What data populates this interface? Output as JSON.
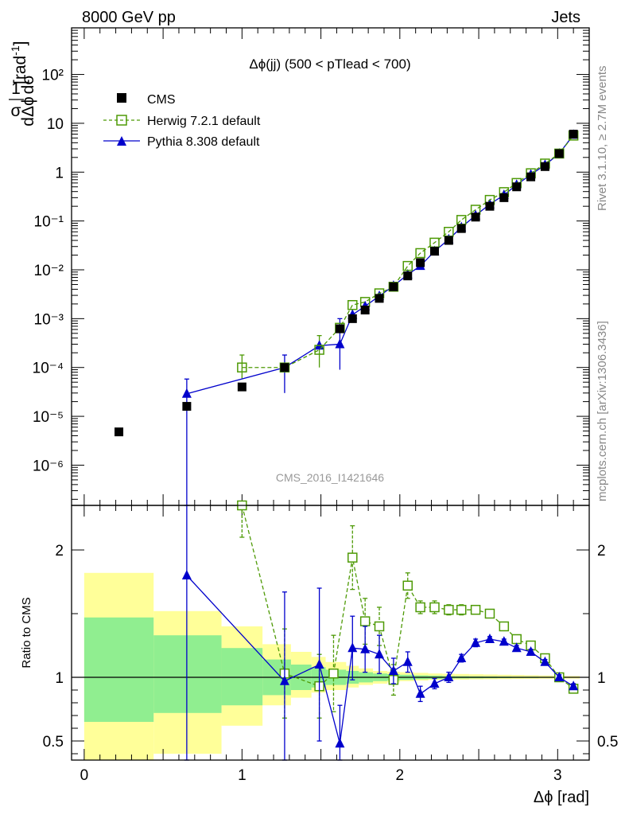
{
  "header": {
    "energy": "8000 GeV pp",
    "process": "Jets",
    "side_label_1": "Rivet 3.1.10, ≥ 2.7M events",
    "side_label_2": "mcplots.cern.ch [arXiv:1306.3436]",
    "watermark": "CMS_2016_I1421646"
  },
  "chart_data": [
    {
      "type": "scatter",
      "title": "Δϕ(jj) (500 < pTlead <  700)",
      "ylabel": "1/σ dσ/dΔϕ [rad⁻¹]",
      "ylabel_parts": {
        "num": "1",
        "den": "σ",
        "num2": "dσ",
        "den2": "dΔϕ",
        "unit": "[rad",
        "unit_exp": "-1",
        "unit_close": "]"
      },
      "yscale": "log",
      "ylim": [
        1.5e-07,
        900
      ],
      "xlim": [
        -0.08,
        3.2
      ],
      "ytick_labels": [
        "10",
        "1",
        "10⁻¹",
        "10⁻²",
        "10⁻³",
        "10⁻⁴",
        "10⁻⁵",
        "10⁻⁶",
        "10²"
      ],
      "legend_placement": "top-left",
      "series": [
        {
          "name": "CMS",
          "color": "#000000",
          "marker": "filled-square",
          "x": [
            0.22,
            0.65,
            1.0,
            1.27,
            1.62,
            1.7,
            1.78,
            1.87,
            1.96,
            2.05,
            2.13,
            2.22,
            2.31,
            2.39,
            2.48,
            2.57,
            2.66,
            2.74,
            2.83,
            2.92,
            3.01,
            3.1
          ],
          "y": [
            4.8e-06,
            1.6e-05,
            4e-05,
            0.0001,
            0.00062,
            0.001,
            0.0015,
            0.0026,
            0.0045,
            0.0075,
            0.014,
            0.024,
            0.04,
            0.07,
            0.12,
            0.2,
            0.3,
            0.5,
            0.8,
            1.3,
            2.4,
            6.0
          ]
        },
        {
          "name": "Herwig 7.2.1 default",
          "color": "#4e9a06",
          "marker": "open-square",
          "line": "dashed",
          "x": [
            1.0,
            1.27,
            1.49,
            1.62,
            1.7,
            1.78,
            1.87,
            1.96,
            2.05,
            2.13,
            2.22,
            2.31,
            2.39,
            2.48,
            2.57,
            2.66,
            2.74,
            2.83,
            2.92,
            3.01,
            3.1
          ],
          "y": [
            0.0001,
            0.0001,
            0.00023,
            0.00065,
            0.0019,
            0.0022,
            0.0033,
            0.0045,
            0.012,
            0.022,
            0.036,
            0.06,
            0.105,
            0.17,
            0.27,
            0.39,
            0.6,
            0.95,
            1.5,
            2.4,
            5.6
          ]
        },
        {
          "name": "Pythia 8.308 default",
          "color": "#0000cc",
          "marker": "filled-triangle",
          "line": "solid",
          "x": [
            0.65,
            1.27,
            1.49,
            1.62,
            1.7,
            1.78,
            1.87,
            1.96,
            2.05,
            2.13,
            2.22,
            2.31,
            2.39,
            2.48,
            2.57,
            2.66,
            2.74,
            2.83,
            2.92,
            3.01,
            3.1
          ],
          "y": [
            2.9e-05,
            0.0001,
            0.00028,
            0.0003,
            0.0012,
            0.0018,
            0.0029,
            0.0047,
            0.008,
            0.012,
            0.024,
            0.042,
            0.074,
            0.13,
            0.22,
            0.34,
            0.55,
            0.89,
            1.4,
            2.4,
            5.8
          ]
        }
      ]
    },
    {
      "type": "line",
      "ylabel": "Ratio to CMS",
      "xlabel": "Δϕ [rad]",
      "xlim": [
        -0.08,
        3.2
      ],
      "ylim": [
        0.35,
        2.35
      ],
      "reference_line": 1,
      "xtick_labels": [
        "0",
        "1",
        "2",
        "3"
      ],
      "ytick_labels": [
        "0.5",
        "1",
        "2"
      ],
      "bands": [
        {
          "name": "yellow",
          "color": "#ffff99",
          "edges": [
            0.0,
            0.44,
            0.87,
            1.13,
            1.31,
            1.44,
            1.53,
            1.66,
            1.74,
            1.83,
            1.92,
            2.0,
            2.09,
            2.18,
            2.27,
            2.35,
            2.44,
            2.53,
            2.62,
            2.71,
            2.79,
            2.88,
            2.97,
            3.05,
            3.14
          ],
          "lo": [
            0.0,
            0.4,
            0.62,
            0.78,
            0.84,
            0.88,
            0.9,
            0.92,
            0.94,
            0.95,
            0.96,
            0.97,
            0.975,
            0.98,
            0.98,
            0.982,
            0.984,
            0.985,
            0.986,
            0.987,
            0.988,
            0.989,
            0.99,
            0.99
          ],
          "hi": [
            1.82,
            1.52,
            1.4,
            1.26,
            1.2,
            1.16,
            1.12,
            1.09,
            1.07,
            1.05,
            1.045,
            1.04,
            1.035,
            1.03,
            1.028,
            1.026,
            1.024,
            1.022,
            1.02,
            1.018,
            1.016,
            1.014,
            1.012,
            1.01
          ]
        },
        {
          "name": "green",
          "color": "#90ee90",
          "edges": [
            0.0,
            0.44,
            0.87,
            1.13,
            1.31,
            1.44,
            1.53,
            1.66,
            1.74,
            1.83,
            1.92,
            2.0,
            2.09,
            2.18,
            2.27,
            2.35,
            2.44,
            2.53,
            2.62,
            2.71,
            2.79,
            2.88,
            2.97,
            3.05,
            3.14
          ],
          "lo": [
            0.65,
            0.72,
            0.78,
            0.86,
            0.9,
            0.92,
            0.94,
            0.95,
            0.96,
            0.97,
            0.975,
            0.98,
            0.985,
            0.987,
            0.99,
            0.991,
            0.992,
            0.993,
            0.994,
            0.995,
            0.995,
            0.996,
            0.996,
            0.997
          ],
          "hi": [
            1.47,
            1.33,
            1.23,
            1.14,
            1.1,
            1.08,
            1.06,
            1.05,
            1.04,
            1.03,
            1.025,
            1.02,
            1.015,
            1.013,
            1.01,
            1.009,
            1.008,
            1.007,
            1.006,
            1.005,
            1.005,
            1.004,
            1.004,
            1.003
          ]
        }
      ],
      "series": [
        {
          "name": "Herwig 7.2.1 default",
          "color": "#4e9a06",
          "marker": "open-square",
          "line": "dashed",
          "x": [
            1.0,
            1.27,
            1.49,
            1.58,
            1.7,
            1.78,
            1.87,
            1.96,
            2.05,
            2.13,
            2.22,
            2.31,
            2.39,
            2.48,
            2.57,
            2.66,
            2.74,
            2.83,
            2.92,
            3.01,
            3.1
          ],
          "y": [
            2.35,
            1.03,
            0.93,
            1.03,
            1.94,
            1.44,
            1.4,
            0.98,
            1.72,
            1.55,
            1.55,
            1.53,
            1.53,
            1.53,
            1.5,
            1.4,
            1.3,
            1.25,
            1.15,
            1.0,
            0.91
          ],
          "err": [
            0.25,
            0.35,
            0.25,
            0.3,
            0.25,
            0.18,
            0.15,
            0.12,
            0.1,
            0.05,
            0.05,
            0.04,
            0.04,
            0.03,
            0.03,
            0.03,
            0.03,
            0.02,
            0.02,
            0.02,
            0.02
          ]
        },
        {
          "name": "Pythia 8.308 default",
          "color": "#0000cc",
          "marker": "filled-triangle",
          "line": "solid",
          "x": [
            0.65,
            1.27,
            1.49,
            1.62,
            1.7,
            1.78,
            1.87,
            1.96,
            2.05,
            2.13,
            2.22,
            2.31,
            2.39,
            2.48,
            2.57,
            2.66,
            2.74,
            2.83,
            2.92,
            3.01,
            3.1
          ],
          "y": [
            1.8,
            0.97,
            1.1,
            0.48,
            1.23,
            1.22,
            1.18,
            1.05,
            1.12,
            0.87,
            0.95,
            1.0,
            1.15,
            1.27,
            1.3,
            1.28,
            1.23,
            1.2,
            1.12,
            1.0,
            0.93
          ],
          "err": [
            1.5,
            0.7,
            0.6,
            0.3,
            0.25,
            0.18,
            0.15,
            0.1,
            0.08,
            0.06,
            0.04,
            0.04,
            0.03,
            0.03,
            0.02,
            0.02,
            0.02,
            0.02,
            0.02,
            0.02,
            0.02
          ]
        }
      ]
    }
  ]
}
